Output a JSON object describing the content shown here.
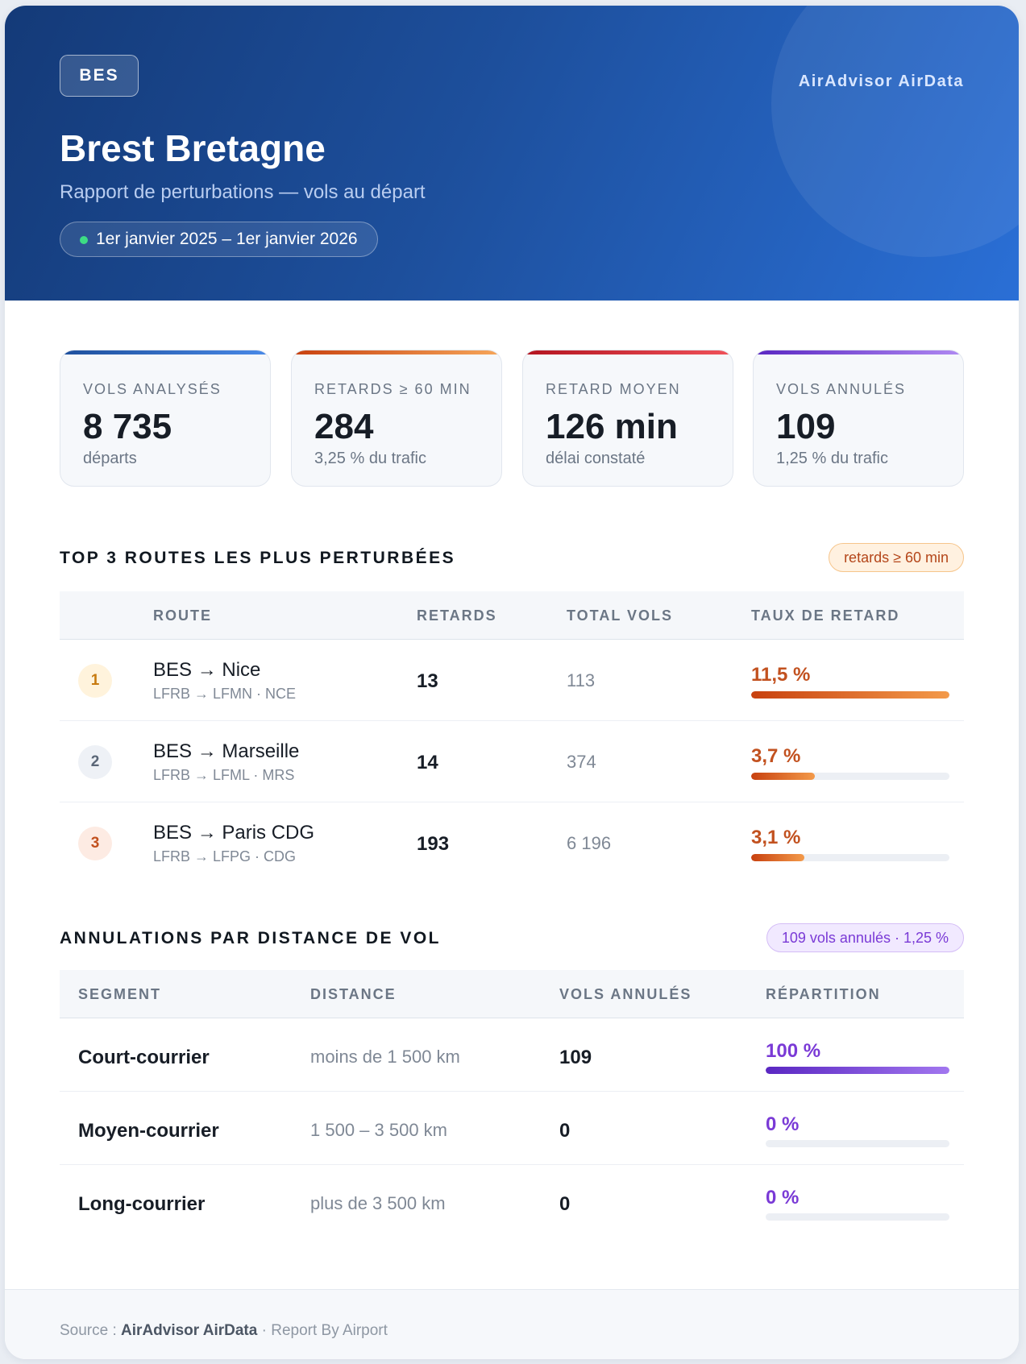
{
  "header": {
    "airport_code": "BES",
    "brand": "AirAdvisor AirData",
    "airport_name": "Brest Bretagne",
    "subtitle": "Rapport de perturbations — vols au départ",
    "period": "1er janvier 2025 – 1er janvier 2026"
  },
  "stats": [
    {
      "label": "VOLS ANALYSÉS",
      "value": "8 735",
      "sub": "départs",
      "color": "#1d4f9c"
    },
    {
      "label": "RETARDS ≥ 60 MIN",
      "value": "284",
      "sub": "3,25 % du trafic",
      "color": "#e0661c"
    },
    {
      "label": "RETARD MOYEN",
      "value": "126 min",
      "sub": "délai constaté",
      "color": "#c81e2a"
    },
    {
      "label": "VOLS ANNULÉS",
      "value": "109",
      "sub": "1,25 % du trafic",
      "color": "#6a2fd0"
    }
  ],
  "routes_section": {
    "title": "TOP 3 ROUTES LES PLUS PERTURBÉES",
    "pill": "retards ≥ 60 min",
    "headers": {
      "route": "ROUTE",
      "delays": "RETARDS",
      "total": "TOTAL VOLS",
      "rate": "TAUX DE RETARD"
    },
    "rows": [
      {
        "rank": "1",
        "route": "BES → Nice",
        "codes": "LFRB → LFMN · NCE",
        "delays": "13",
        "total": "113",
        "rate": "11,5 %",
        "rate_fraction": 1.0,
        "rank_bg": "#fff3dc",
        "rank_color": "#c77a0f"
      },
      {
        "rank": "2",
        "route": "BES → Marseille",
        "codes": "LFRB → LFML · MRS",
        "delays": "14",
        "total": "374",
        "rate": "3,7 %",
        "rate_fraction": 0.32,
        "rank_bg": "#eef1f6",
        "rank_color": "#5a6677"
      },
      {
        "rank": "3",
        "route": "BES → Paris CDG",
        "codes": "LFRB → LFPG · CDG",
        "delays": "193",
        "total": "6 196",
        "rate": "3,1 %",
        "rate_fraction": 0.27,
        "rank_bg": "#fdebe3",
        "rank_color": "#c2511f"
      }
    ]
  },
  "cancel_section": {
    "title": "ANNULATIONS PAR DISTANCE DE VOL",
    "pill": "109 vols annulés · 1,25 %",
    "headers": {
      "segment": "SEGMENT",
      "distance": "DISTANCE",
      "cancelled": "VOLS ANNULÉS",
      "share": "RÉPARTITION"
    },
    "rows": [
      {
        "segment": "Court-courrier",
        "distance": "moins de 1 500 km",
        "cancelled": "109",
        "share": "100 %",
        "share_fraction": 1.0
      },
      {
        "segment": "Moyen-courrier",
        "distance": "1 500 – 3 500 km",
        "cancelled": "0",
        "share": "0 %",
        "share_fraction": 0.0
      },
      {
        "segment": "Long-courrier",
        "distance": "plus de 3 500 km",
        "cancelled": "0",
        "share": "0 %",
        "share_fraction": 0.0
      }
    ]
  },
  "footer": {
    "source_label": "Source : ",
    "source_name": "AirAdvisor AirData",
    "suffix": " · Report By Airport"
  },
  "colors": {
    "rate_text": "#c2511f",
    "share_text": "#7a3ad6"
  }
}
